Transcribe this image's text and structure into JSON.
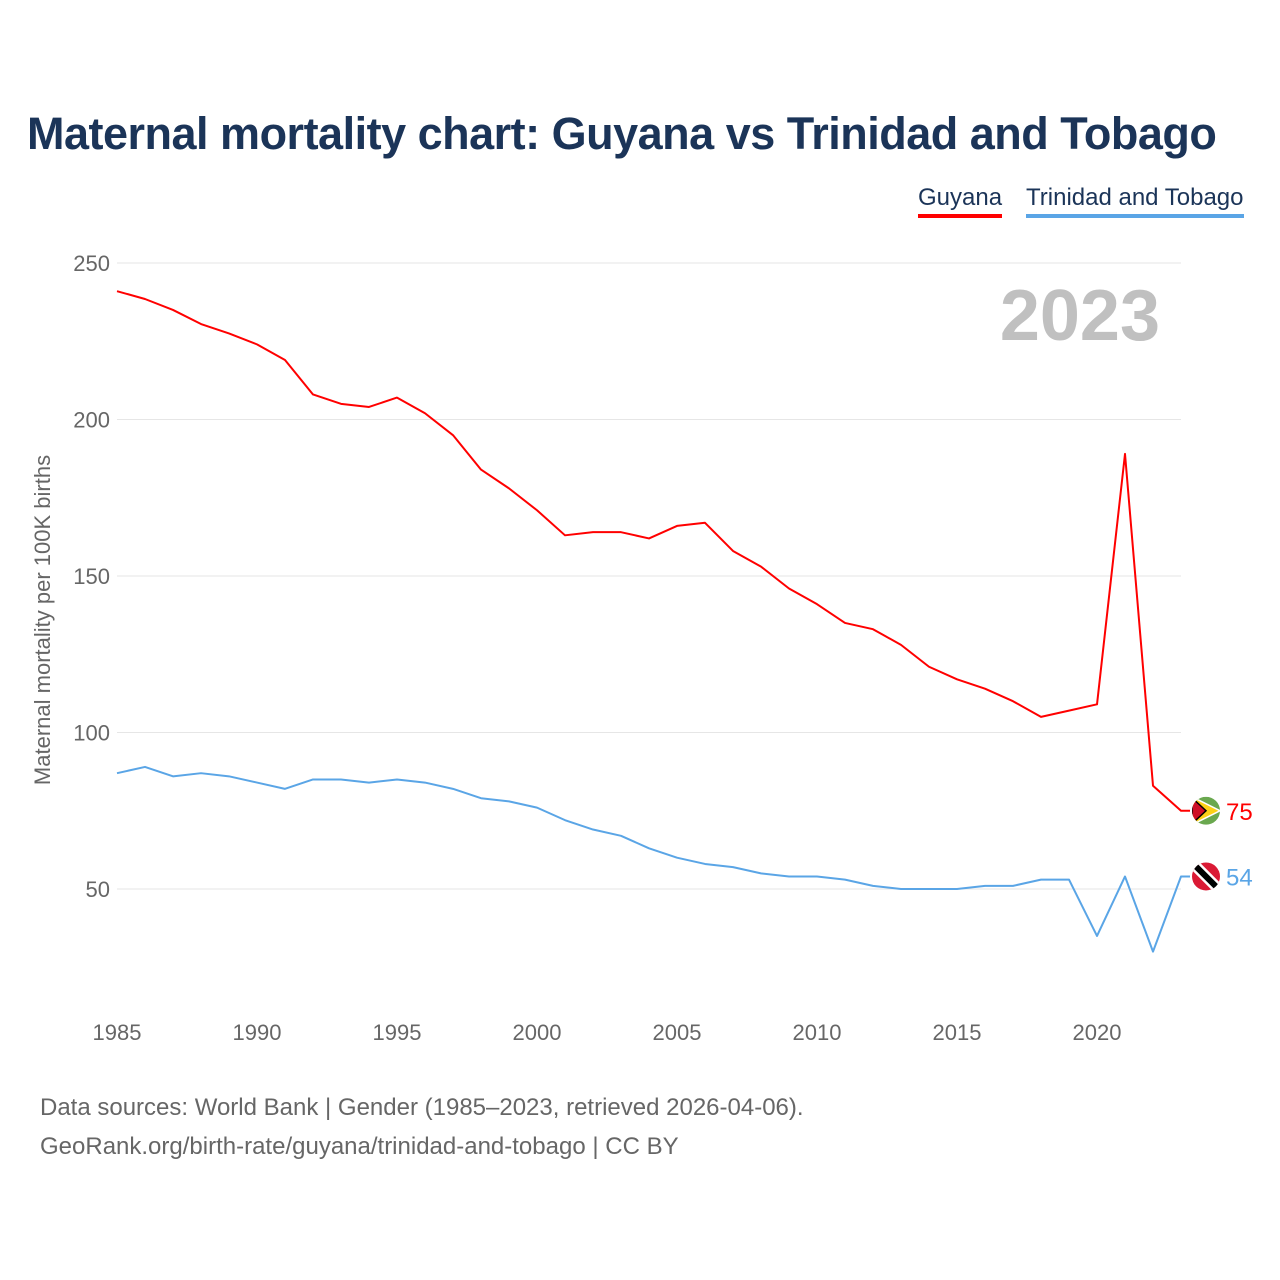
{
  "chart_data": {
    "type": "line",
    "title": "Maternal mortality chart: Guyana vs Trinidad and Tobago",
    "xlabel": "",
    "ylabel": "Maternal mortality per 100K births",
    "year_label": "2023",
    "xlim": [
      1985,
      2023
    ],
    "ylim": [
      20,
      250
    ],
    "yticks": [
      50,
      100,
      150,
      200,
      250
    ],
    "xticks": [
      1985,
      1990,
      1995,
      2000,
      2005,
      2010,
      2015,
      2020
    ],
    "grid": true,
    "legend_position": "top-right",
    "x": [
      1985,
      1986,
      1987,
      1988,
      1989,
      1990,
      1991,
      1992,
      1993,
      1994,
      1995,
      1996,
      1997,
      1998,
      1999,
      2000,
      2001,
      2002,
      2003,
      2004,
      2005,
      2006,
      2007,
      2008,
      2009,
      2010,
      2011,
      2012,
      2013,
      2014,
      2015,
      2016,
      2017,
      2018,
      2019,
      2020,
      2021,
      2022,
      2023
    ],
    "series": [
      {
        "name": "Guyana",
        "color": "#ff0000",
        "end_label": "75",
        "values": [
          241,
          238.5,
          235,
          230.5,
          227.5,
          224,
          219,
          208,
          205,
          204,
          207,
          202,
          195,
          184,
          178,
          171,
          163,
          164,
          164,
          162,
          166,
          167,
          158,
          153,
          146,
          141,
          135,
          133,
          128,
          121,
          117,
          114,
          110,
          105,
          107,
          109,
          189,
          83,
          75
        ]
      },
      {
        "name": "Trinidad and Tobago",
        "color": "#5aa5e6",
        "end_label": "54",
        "values": [
          87,
          89,
          86,
          87,
          86,
          84,
          82,
          85,
          85,
          84,
          85,
          84,
          82,
          79,
          78,
          76,
          72,
          69,
          67,
          63,
          60,
          58,
          57,
          55,
          54,
          54,
          53,
          51,
          50,
          50,
          50,
          51,
          51,
          53,
          53,
          35,
          54,
          30,
          54
        ]
      }
    ]
  },
  "footer": {
    "line1": "Data sources: World Bank | Gender (1985–2023, retrieved 2026-04-06).",
    "line2": "GeoRank.org/birth-rate/guyana/trinidad-and-tobago | CC BY"
  }
}
